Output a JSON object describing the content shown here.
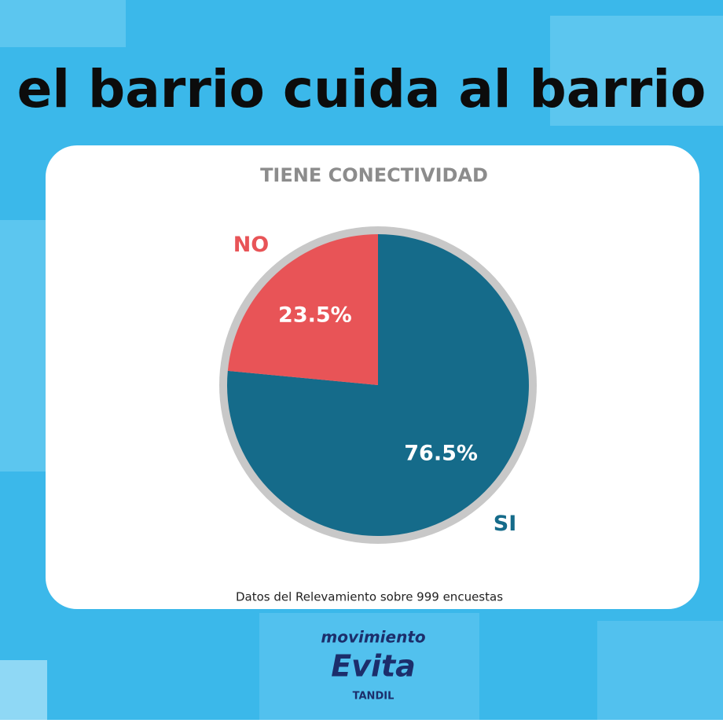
{
  "headline": "el barrio cuida al barrio",
  "chart_data": {
    "type": "pie",
    "title": "TIENE CONECTIVIDAD",
    "categories": [
      "SI",
      "NO"
    ],
    "values": [
      76.5,
      23.5
    ],
    "value_labels": [
      "76.5%",
      "23.5%"
    ],
    "colors": [
      "#156b8a",
      "#e85457"
    ]
  },
  "footer": "Datos del Relevamiento sobre 999 encuestas",
  "logo": {
    "line1": "movimiento",
    "line2": "Evita",
    "line3": "TANDIL"
  }
}
